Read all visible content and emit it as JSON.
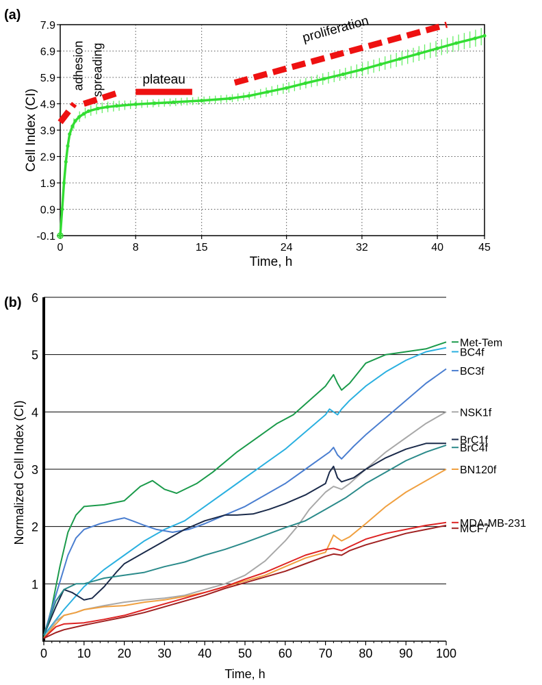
{
  "chart_data": [
    {
      "panel_label": "(a)",
      "type": "line",
      "title": "",
      "xlabel": "Time, h",
      "ylabel": "Cell Index (CI)",
      "xlim": [
        0,
        45
      ],
      "ylim": [
        -0.1,
        7.9
      ],
      "x_ticks": [
        0,
        8,
        15,
        24,
        32,
        40,
        45
      ],
      "x_tick_labels": [
        "0",
        "8",
        "15",
        "24",
        "32",
        "40",
        "45"
      ],
      "y_ticks": [
        -0.1,
        0.9,
        1.9,
        2.9,
        3.9,
        4.9,
        5.9,
        6.9,
        7.9
      ],
      "y_tick_labels": [
        "-0.1",
        "0.9",
        "1.9",
        "2.9",
        "3.9",
        "4.9",
        "5.9",
        "6.9",
        "7.9"
      ],
      "grid": true,
      "series": [
        {
          "name": "Cell Index",
          "color": "#33dd33",
          "error_color": "#66ee66",
          "x": [
            0,
            0.2,
            0.4,
            0.6,
            0.8,
            1.0,
            1.3,
            1.6,
            2,
            2.5,
            3,
            4,
            5,
            6,
            8,
            10,
            12,
            15,
            18,
            20,
            22,
            24,
            26,
            28,
            30,
            32,
            34,
            36,
            38,
            40,
            42,
            44,
            45
          ],
          "values": [
            -0.1,
            0.9,
            1.9,
            2.7,
            3.3,
            3.75,
            4.05,
            4.25,
            4.4,
            4.52,
            4.62,
            4.72,
            4.78,
            4.82,
            4.88,
            4.92,
            4.96,
            5.02,
            5.1,
            5.2,
            5.35,
            5.5,
            5.68,
            5.85,
            6.02,
            6.2,
            6.4,
            6.6,
            6.8,
            7.0,
            7.2,
            7.38,
            7.48
          ],
          "errors": [
            0,
            0.1,
            0.15,
            0.2,
            0.2,
            0.2,
            0.2,
            0.2,
            0.2,
            0.2,
            0.2,
            0.2,
            0.2,
            0.2,
            0.15,
            0.15,
            0.15,
            0.15,
            0.15,
            0.15,
            0.18,
            0.2,
            0.2,
            0.22,
            0.22,
            0.25,
            0.25,
            0.27,
            0.28,
            0.3,
            0.3,
            0.32,
            0.33
          ]
        }
      ],
      "phases": [
        {
          "label": "adhesion",
          "x": [
            0,
            1.5
          ],
          "y": [
            4.2,
            4.9
          ],
          "style": "dashed"
        },
        {
          "label": "spreading",
          "x": [
            2.5,
            6
          ],
          "y": [
            4.9,
            5.3
          ],
          "style": "dashed"
        },
        {
          "label": "plateau",
          "x": [
            8,
            14
          ],
          "y": [
            5.35,
            5.35
          ],
          "style": "solid"
        },
        {
          "label": "proliferation",
          "x": [
            18.5,
            41
          ],
          "y": [
            5.7,
            7.9
          ],
          "style": "dashed"
        }
      ],
      "phase_color": "#ee1111"
    },
    {
      "panel_label": "(b)",
      "type": "line",
      "title": "",
      "xlabel": "Time, h",
      "ylabel": "Normalized Cell Index (CI)",
      "xlim": [
        0,
        100
      ],
      "ylim": [
        0,
        6
      ],
      "x_ticks": [
        0,
        10,
        20,
        30,
        40,
        50,
        60,
        70,
        80,
        90,
        100
      ],
      "x_tick_labels": [
        "0",
        "10",
        "20",
        "30",
        "40",
        "50",
        "60",
        "70",
        "80",
        "90",
        "100"
      ],
      "y_ticks": [
        1,
        2,
        3,
        4,
        5,
        6
      ],
      "y_tick_labels": [
        "1",
        "2",
        "3",
        "4",
        "5",
        "6"
      ],
      "grid": "horizontal",
      "series": [
        {
          "name": "Met-Tem",
          "color": "#1a9a4a",
          "label_y": 5.22,
          "x": [
            0,
            2,
            4,
            6,
            8,
            10,
            15,
            20,
            24,
            27,
            30,
            33,
            38,
            42,
            48,
            52,
            58,
            62,
            66,
            70,
            71,
            72,
            73,
            74,
            76,
            80,
            85,
            90,
            95,
            100
          ],
          "values": [
            0.05,
            0.6,
            1.3,
            1.9,
            2.2,
            2.35,
            2.38,
            2.45,
            2.7,
            2.8,
            2.65,
            2.58,
            2.75,
            2.95,
            3.3,
            3.5,
            3.8,
            3.95,
            4.2,
            4.45,
            4.55,
            4.65,
            4.5,
            4.38,
            4.5,
            4.85,
            5.0,
            5.05,
            5.1,
            5.22
          ]
        },
        {
          "name": "BC4f",
          "color": "#2ab0e0",
          "label_y": 5.05,
          "x": [
            0,
            5,
            10,
            15,
            20,
            25,
            30,
            35,
            40,
            45,
            50,
            55,
            60,
            65,
            70,
            71,
            72,
            73,
            74,
            76,
            80,
            85,
            90,
            95,
            100
          ],
          "values": [
            0.1,
            0.55,
            0.95,
            1.25,
            1.5,
            1.75,
            1.95,
            2.1,
            2.35,
            2.6,
            2.85,
            3.1,
            3.35,
            3.65,
            3.95,
            4.05,
            4.0,
            3.95,
            4.05,
            4.2,
            4.45,
            4.7,
            4.9,
            5.05,
            5.12
          ]
        },
        {
          "name": "BC3f",
          "color": "#4a7ed0",
          "label_y": 4.72,
          "x": [
            0,
            3,
            6,
            8,
            10,
            14,
            18,
            20,
            22,
            25,
            28,
            32,
            36,
            40,
            45,
            50,
            55,
            60,
            65,
            70,
            71,
            72,
            73,
            74,
            77,
            80,
            85,
            90,
            95,
            100
          ],
          "values": [
            0.1,
            0.8,
            1.5,
            1.8,
            1.95,
            2.05,
            2.12,
            2.15,
            2.1,
            2.02,
            1.95,
            1.9,
            1.95,
            2.05,
            2.2,
            2.35,
            2.55,
            2.75,
            3.0,
            3.25,
            3.3,
            3.38,
            3.25,
            3.18,
            3.4,
            3.6,
            3.9,
            4.2,
            4.5,
            4.75
          ]
        },
        {
          "name": "NSK1f",
          "color": "#a8a8a8",
          "label_y": 4.0,
          "x": [
            0,
            3,
            5,
            8,
            10,
            15,
            20,
            25,
            30,
            35,
            40,
            45,
            50,
            55,
            60,
            63,
            66,
            70,
            72,
            74,
            76,
            80,
            85,
            90,
            95,
            100
          ],
          "values": [
            0.05,
            0.35,
            0.45,
            0.5,
            0.55,
            0.62,
            0.68,
            0.72,
            0.75,
            0.8,
            0.9,
            1.0,
            1.15,
            1.4,
            1.75,
            2.0,
            2.3,
            2.6,
            2.7,
            2.65,
            2.75,
            3.0,
            3.3,
            3.55,
            3.8,
            4.0
          ]
        },
        {
          "name": "BrC1f",
          "color": "#1a2a4a",
          "label_y": 3.52,
          "x": [
            0,
            3,
            5,
            7,
            10,
            12,
            15,
            18,
            20,
            25,
            30,
            35,
            40,
            45,
            48,
            52,
            56,
            60,
            65,
            70,
            71,
            72,
            73,
            74,
            77,
            80,
            85,
            90,
            95,
            100
          ],
          "values": [
            0.1,
            0.6,
            0.9,
            0.85,
            0.72,
            0.75,
            0.95,
            1.2,
            1.35,
            1.55,
            1.75,
            1.95,
            2.1,
            2.2,
            2.2,
            2.22,
            2.3,
            2.4,
            2.55,
            2.75,
            2.95,
            3.05,
            2.85,
            2.78,
            2.85,
            3.0,
            3.2,
            3.35,
            3.45,
            3.45
          ]
        },
        {
          "name": "BrC4f",
          "color": "#2a8a8a",
          "label_y": 3.38,
          "x": [
            0,
            3,
            5,
            8,
            10,
            15,
            20,
            25,
            30,
            35,
            40,
            45,
            50,
            55,
            60,
            65,
            70,
            75,
            80,
            85,
            90,
            95,
            100
          ],
          "values": [
            0.1,
            0.7,
            0.9,
            1.0,
            1.0,
            1.1,
            1.15,
            1.2,
            1.3,
            1.38,
            1.5,
            1.6,
            1.72,
            1.85,
            1.98,
            2.1,
            2.3,
            2.5,
            2.75,
            2.95,
            3.15,
            3.3,
            3.42
          ]
        },
        {
          "name": "BN120f",
          "color": "#f0a040",
          "label_y": 3.0,
          "x": [
            0,
            3,
            5,
            8,
            10,
            15,
            20,
            25,
            30,
            35,
            40,
            45,
            50,
            55,
            60,
            65,
            70,
            71,
            72,
            73,
            74,
            76,
            80,
            85,
            90,
            95,
            100
          ],
          "values": [
            0.05,
            0.3,
            0.45,
            0.5,
            0.55,
            0.6,
            0.62,
            0.68,
            0.72,
            0.78,
            0.85,
            0.95,
            1.05,
            1.15,
            1.3,
            1.45,
            1.55,
            1.7,
            1.85,
            1.8,
            1.75,
            1.82,
            2.05,
            2.35,
            2.6,
            2.8,
            3.0
          ]
        },
        {
          "name": "MDA-MB-231",
          "color": "#dd2222",
          "label_y": 2.07,
          "x": [
            0,
            3,
            5,
            10,
            15,
            20,
            25,
            30,
            35,
            40,
            45,
            50,
            55,
            60,
            65,
            70,
            72,
            74,
            76,
            80,
            85,
            90,
            95,
            100
          ],
          "values": [
            0.05,
            0.25,
            0.3,
            0.32,
            0.38,
            0.45,
            0.55,
            0.65,
            0.75,
            0.85,
            0.95,
            1.08,
            1.2,
            1.35,
            1.5,
            1.6,
            1.62,
            1.58,
            1.65,
            1.78,
            1.88,
            1.95,
            2.02,
            2.07
          ]
        },
        {
          "name": "MCF7",
          "color": "#a02020",
          "label_y": 1.97,
          "x": [
            0,
            3,
            5,
            10,
            15,
            20,
            25,
            30,
            35,
            40,
            45,
            50,
            55,
            60,
            65,
            70,
            72,
            74,
            76,
            80,
            85,
            90,
            95,
            100
          ],
          "values": [
            0.05,
            0.15,
            0.2,
            0.28,
            0.35,
            0.42,
            0.5,
            0.6,
            0.7,
            0.8,
            0.92,
            1.02,
            1.12,
            1.22,
            1.35,
            1.48,
            1.52,
            1.5,
            1.58,
            1.68,
            1.78,
            1.88,
            1.95,
            2.02
          ]
        }
      ]
    }
  ]
}
